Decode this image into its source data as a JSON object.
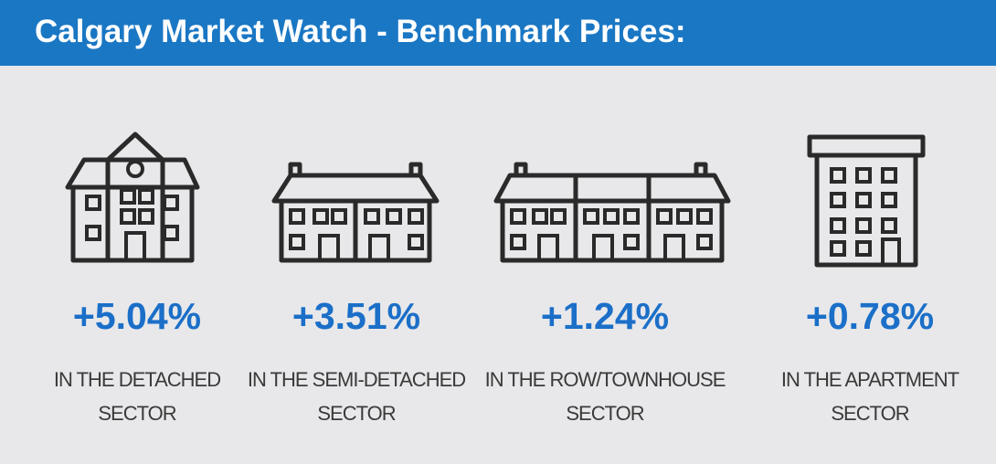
{
  "header": {
    "title": "Calgary Market Watch -  Benchmark Prices:"
  },
  "items": [
    {
      "change": "+5.04%",
      "label": [
        "IN THE DETACHED",
        "SECTOR"
      ]
    },
    {
      "change": "+3.51%",
      "label": [
        "IN THE SEMI-DETACHED",
        "SECTOR"
      ]
    },
    {
      "change": "+1.24%",
      "label": [
        "IN THE ROW/TOWNHOUSE",
        "SECTOR"
      ]
    },
    {
      "change": "+0.78%",
      "label": [
        "IN THE APARTMENT",
        "SECTOR"
      ]
    }
  ]
}
